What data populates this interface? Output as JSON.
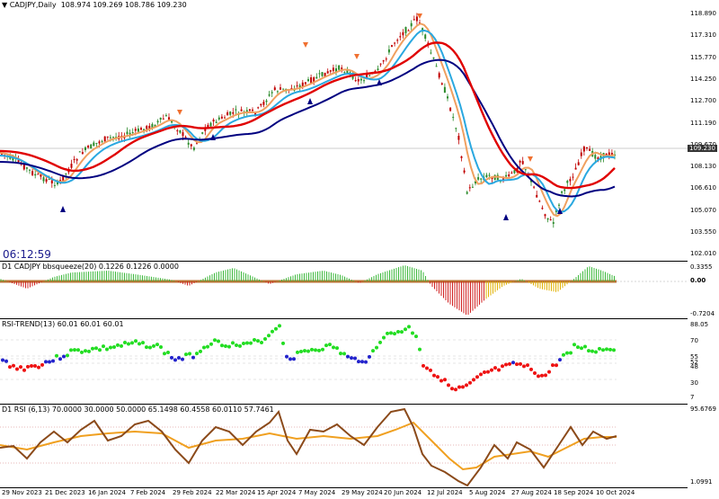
{
  "main": {
    "symbol_label": "CADJPY,Daily",
    "ohlc": "108.974 109.269 108.786 109.230",
    "clock": "06:12:59",
    "current_price": "109.230",
    "price_ticks": [
      "118.890",
      "117.310",
      "115.770",
      "114.250",
      "112.700",
      "111.190",
      "109.670",
      "108.130",
      "106.610",
      "105.070",
      "103.550",
      "102.010"
    ]
  },
  "squeeze": {
    "label": "D1 CADJPY bbsqueeze(20) 0.1226 0.1226 0.0000",
    "ticks": [
      "0.3355",
      "0.00",
      "-0.7204"
    ]
  },
  "rsitrend": {
    "label": "RSI-TREND(13) 60.01 60.01 60.01",
    "ticks": [
      "88.05",
      "70",
      "55",
      "52",
      "48",
      "45",
      "30",
      "7"
    ]
  },
  "rsi": {
    "label": "D1 RSI  (6,13) 70.0000 30.0000 50.0000 65.1498 60.4558 60.0110 57.7461",
    "ticks": [
      "95.6769",
      "1.0991"
    ]
  },
  "xaxis": {
    "labels": [
      "29 Nov 2023",
      "21 Dec 2023",
      "16 Jan 2024",
      "7 Feb 2024",
      "29 Feb 2024",
      "22 Mar 2024",
      "15 Apr 2024",
      "7 May 2024",
      "29 May 2024",
      "20 Jun 2024",
      "12 Jul 2024",
      "5 Aug 2024",
      "27 Aug 2024",
      "18 Sep 2024",
      "10 Oct 2024"
    ]
  },
  "colors": {
    "ema_fast": "#f0a060",
    "ema_red": "#e00000",
    "ema_cyan": "#2aa8e0",
    "ema_navy": "#000080",
    "bull": "#2a8a2a",
    "bear": "#c00000"
  }
}
